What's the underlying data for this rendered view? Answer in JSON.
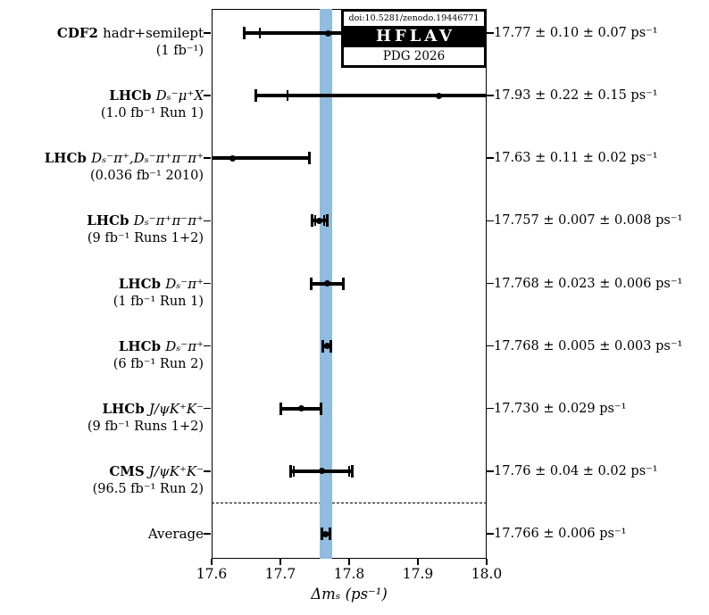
{
  "figure": {
    "logo": {
      "doi": "doi:10.5281/zenodo.19446771",
      "name": "HFLAV",
      "edition": "PDG 2026"
    }
  },
  "chart_data": {
    "type": "scatter",
    "subtype": "forest-plot-with-error-bars",
    "title": "",
    "xlabel": "Δmₛ (ps⁻¹)",
    "ylabel": "",
    "xlim": [
      17.6,
      18.0
    ],
    "xticks": [
      "17.6",
      "17.7",
      "17.8",
      "17.9",
      "18.0"
    ],
    "grid": false,
    "legend": "none",
    "band": {
      "meaning": "world average ± total uncertainty",
      "low": 17.757,
      "high": 17.775,
      "color": "#8fbcdf"
    },
    "separator_before_row": 8,
    "measurements": [
      {
        "experiment": "CDF2",
        "mode": "hadr+semilept",
        "mode_italic": false,
        "sublabel": "(1 fb⁻¹)",
        "value": 17.77,
        "stat": 0.1,
        "syst": 0.07,
        "value_label": "17.77 ± 0.10 ± 0.07 ps⁻¹",
        "is_average": false
      },
      {
        "experiment": "LHCb",
        "mode": "Dₛ⁻μ⁺X",
        "mode_italic": true,
        "sublabel": "(1.0 fb⁻¹ Run 1)",
        "value": 17.93,
        "stat": 0.22,
        "syst": 0.15,
        "value_label": "17.93 ± 0.22 ± 0.15 ps⁻¹",
        "is_average": false
      },
      {
        "experiment": "LHCb",
        "mode": "Dₛ⁻π⁺,Dₛ⁻π⁺π⁻π⁺",
        "mode_italic": true,
        "sublabel": "(0.036 fb⁻¹ 2010)",
        "value": 17.63,
        "stat": 0.11,
        "syst": 0.02,
        "value_label": "17.63 ± 0.11 ± 0.02 ps⁻¹",
        "is_average": false
      },
      {
        "experiment": "LHCb",
        "mode": "Dₛ⁻π⁺π⁻π⁺",
        "mode_italic": true,
        "sublabel": "(9 fb⁻¹ Runs 1+2)",
        "value": 17.757,
        "stat": 0.007,
        "syst": 0.008,
        "value_label": "17.757 ± 0.007 ± 0.008 ps⁻¹",
        "is_average": false
      },
      {
        "experiment": "LHCb",
        "mode": "Dₛ⁻π⁺",
        "mode_italic": true,
        "sublabel": "(1 fb⁻¹ Run 1)",
        "value": 17.768,
        "stat": 0.023,
        "syst": 0.006,
        "value_label": "17.768 ± 0.023 ± 0.006 ps⁻¹",
        "is_average": false
      },
      {
        "experiment": "LHCb",
        "mode": "Dₛ⁻π⁺",
        "mode_italic": true,
        "sublabel": "(6 fb⁻¹ Run 2)",
        "value": 17.768,
        "stat": 0.005,
        "syst": 0.003,
        "value_label": "17.768 ± 0.005 ± 0.003 ps⁻¹",
        "is_average": false
      },
      {
        "experiment": "LHCb",
        "mode": "J/ψK⁺K⁻",
        "mode_italic": true,
        "sublabel": "(9 fb⁻¹ Runs 1+2)",
        "value": 17.73,
        "stat": 0.029,
        "syst": null,
        "value_label": "17.730 ± 0.029 ps⁻¹",
        "is_average": false
      },
      {
        "experiment": "CMS",
        "mode": "J/ψK⁺K⁻",
        "mode_italic": true,
        "sublabel": "(96.5 fb⁻¹ Run 2)",
        "value": 17.76,
        "stat": 0.04,
        "syst": 0.02,
        "value_label": "17.76 ± 0.04 ± 0.02 ps⁻¹",
        "is_average": false
      },
      {
        "experiment": "",
        "mode": "Average",
        "mode_italic": false,
        "sublabel": "",
        "value": 17.766,
        "stat": 0.006,
        "syst": null,
        "value_label": "17.766 ± 0.006 ps⁻¹",
        "is_average": true
      }
    ]
  }
}
